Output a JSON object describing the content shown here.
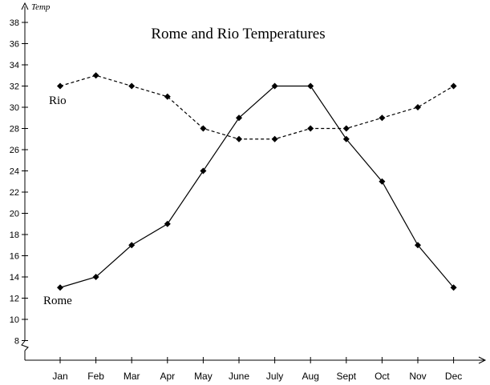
{
  "chart_data": {
    "type": "line",
    "title": "Rome and Rio Temperatures",
    "ylabel": "Temp",
    "xlabel": "",
    "categories": [
      "Jan",
      "Feb",
      "Mar",
      "Apr",
      "May",
      "June",
      "July",
      "Aug",
      "Sept",
      "Oct",
      "Nov",
      "Dec"
    ],
    "yticks": [
      8,
      10,
      12,
      14,
      16,
      18,
      20,
      22,
      24,
      26,
      28,
      30,
      32,
      34,
      36,
      38
    ],
    "ylim": [
      8,
      39
    ],
    "axis_break": true,
    "grid": false,
    "series": [
      {
        "name": "Rio",
        "style": "dashed",
        "color": "#000000",
        "values": [
          32,
          33,
          32,
          31,
          28,
          27,
          27,
          28,
          28,
          29,
          30,
          32
        ]
      },
      {
        "name": "Rome",
        "style": "solid",
        "color": "#000000",
        "values": [
          13,
          14,
          17,
          19,
          24,
          29,
          32,
          32,
          27,
          23,
          17,
          13
        ]
      }
    ]
  }
}
